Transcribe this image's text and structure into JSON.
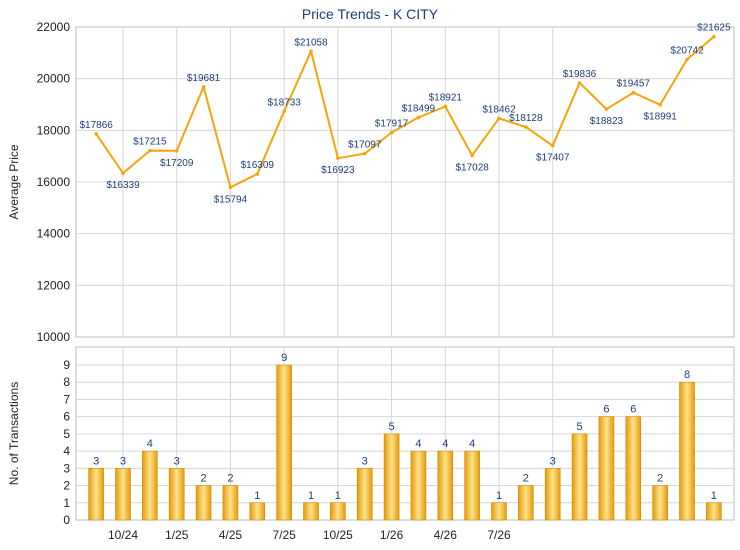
{
  "colors": {
    "line": "#f5a40c",
    "bar_light": "#fde38c",
    "bar_dark": "#e69a08",
    "grid": "#d6d6d6",
    "title": "#1f3d7a",
    "axis_text": "#222222",
    "label_text": "#1f3d7a"
  },
  "chart_data": [
    {
      "type": "line",
      "title": "Price Trends - K CITY",
      "ylabel": "Average Price",
      "ylim": [
        10000,
        22000
      ],
      "yticks": [
        "10000",
        "12000",
        "14000",
        "16000",
        "18000",
        "20000",
        "22000"
      ],
      "grid": true,
      "series": [
        {
          "values": [
            17866,
            16339,
            17215,
            17209,
            19681,
            15794,
            16309,
            18733,
            21058,
            16923,
            17097,
            17917,
            18499,
            18921,
            17028,
            18462,
            18128,
            17407,
            19836,
            18823,
            19457,
            18991,
            20742,
            21625
          ],
          "labels": [
            "$17866",
            "$16339",
            "$17215",
            "$17209",
            "$19681",
            "$15794",
            "$16309",
            "$18733",
            "$21058",
            "$16923",
            "$17097",
            "$17917",
            "$18499",
            "$18921",
            "$17028",
            "$18462",
            "$18128",
            "$17407",
            "$19836",
            "$18823",
            "$19457",
            "$18991",
            "$20742",
            "$21625"
          ]
        }
      ]
    },
    {
      "type": "bar",
      "ylabel": "No. of Transactions",
      "ylim": [
        0,
        9
      ],
      "yticks": [
        "0",
        "1",
        "2",
        "3",
        "4",
        "5",
        "6",
        "7",
        "8",
        "9"
      ],
      "grid": true,
      "values": [
        3,
        3,
        4,
        3,
        2,
        2,
        1,
        9,
        1,
        1,
        3,
        5,
        4,
        4,
        4,
        1,
        2,
        3,
        5,
        6,
        6,
        2,
        8,
        1
      ],
      "value_labels": [
        "3",
        "3",
        "4",
        "3",
        "2",
        "2",
        "1",
        "9",
        "1",
        "1",
        "3",
        "5",
        "4",
        "4",
        "4",
        "1",
        "2",
        "3",
        "5",
        "6",
        "6",
        "2",
        "8",
        "1"
      ],
      "x_tick_labels": [
        {
          "slot": 3,
          "label": "10/24"
        },
        {
          "slot": 7,
          "label": "1/25"
        },
        {
          "slot": 11,
          "label": "4/25"
        },
        {
          "slot": 15,
          "label": "7/25"
        },
        {
          "slot": 19,
          "label": "10/25"
        },
        {
          "slot": 23,
          "label": "1/26"
        },
        {
          "slot": 27,
          "label": "4/26"
        },
        {
          "slot": 31,
          "label": "7/26"
        }
      ]
    }
  ]
}
